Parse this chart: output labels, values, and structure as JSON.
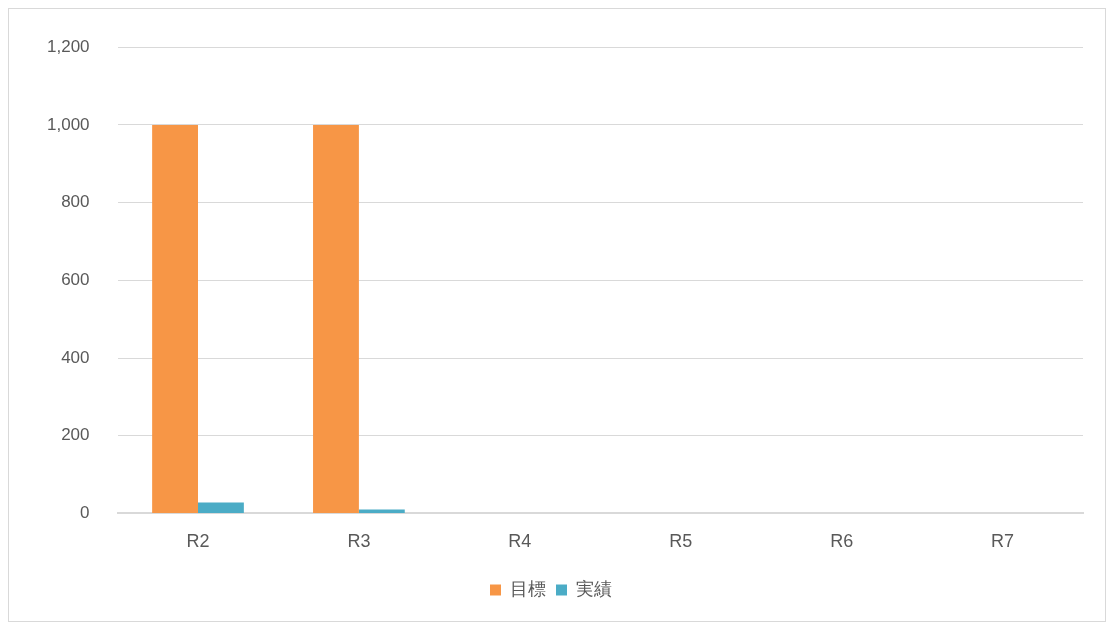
{
  "chart_data": {
    "type": "bar",
    "categories": [
      "R2",
      "R3",
      "R4",
      "R5",
      "R6",
      "R7"
    ],
    "series": [
      {
        "name": "目標",
        "color": "#f79646",
        "values": [
          1000,
          1000,
          null,
          null,
          null,
          null
        ]
      },
      {
        "name": "実績",
        "color": "#4bacc6",
        "values": [
          28,
          10,
          null,
          null,
          null,
          null
        ]
      }
    ],
    "ylim": [
      0,
      1200
    ],
    "yticks": [
      0,
      200,
      400,
      600,
      800,
      {
        "value": 1000,
        "label": "1,000"
      },
      {
        "value": 1200,
        "label": "1,200"
      }
    ],
    "grid": "y",
    "legend": "bottom"
  }
}
